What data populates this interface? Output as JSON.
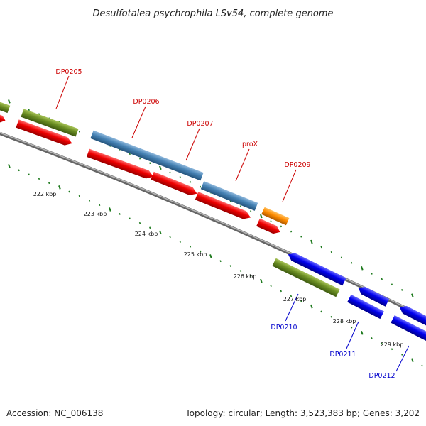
{
  "title": "Desulfotalea psychrophila LSv54, complete genome",
  "footer": {
    "accession": "Accession: NC_006138",
    "stats": "Topology: circular; Length: 3,523,383 bp; Genes: 3,202"
  },
  "colors": {
    "top_gene_label": "#cc0000",
    "bottom_gene_label": "#0000cc",
    "red_feature": "#ee0000",
    "green_feature": "#6b8e23",
    "steelblue_feature": "#4682b4",
    "orange_feature": "#ff8c00",
    "blue_feature": "#0000ee",
    "tick": "#1e7a1e",
    "backbone": "#888888"
  },
  "kbp_labels": [
    "222 kbp",
    "223 kbp",
    "224 kbp",
    "225 kbp",
    "226 kbp",
    "227 kbp",
    "228 kbp",
    "229 kbp"
  ],
  "gene_labels": [
    "DP0205",
    "DP0206",
    "DP0207",
    "proX",
    "DP0209",
    "DP0210",
    "DP0211",
    "DP0212"
  ]
}
